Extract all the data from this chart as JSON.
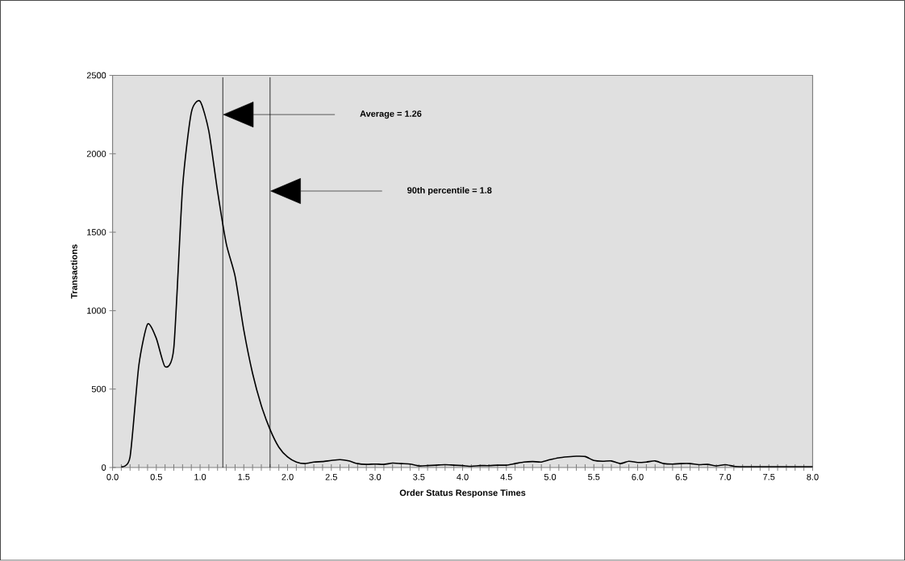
{
  "chart_data": {
    "type": "line",
    "xlabel": "Order Status Response Times",
    "ylabel": "Transactions",
    "x": [
      0.1,
      0.2,
      0.3,
      0.4,
      0.5,
      0.6,
      0.7,
      0.8,
      0.9,
      1.0,
      1.1,
      1.2,
      1.3,
      1.4,
      1.5,
      1.6,
      1.7,
      1.8,
      1.9,
      2.0,
      2.1,
      2.2,
      2.3,
      2.4,
      2.5,
      2.6,
      2.7,
      2.8,
      2.9,
      3.0,
      3.1,
      3.2,
      3.3,
      3.4,
      3.5,
      3.6,
      3.7,
      3.8,
      3.9,
      4.0,
      4.1,
      4.2,
      4.3,
      4.4,
      4.5,
      4.6,
      4.7,
      4.8,
      4.9,
      5.0,
      5.1,
      5.2,
      5.3,
      5.4,
      5.5,
      5.6,
      5.7,
      5.8,
      5.9,
      6.0,
      6.1,
      6.2,
      6.3,
      6.4,
      6.5,
      6.6,
      6.7,
      6.8,
      6.9,
      7.0,
      7.1,
      7.2,
      7.3,
      7.4,
      7.5,
      7.6,
      7.7,
      7.8,
      7.9,
      8.0
    ],
    "series": [
      {
        "color": "#000000",
        "values": [
          5,
          68,
          650,
          914,
          823,
          643,
          763,
          1785,
          2263,
          2335,
          2145,
          1760,
          1425,
          1220,
          875,
          600,
          395,
          242,
          130,
          67,
          35,
          25,
          35,
          38,
          45,
          50,
          42,
          25,
          20,
          22,
          20,
          28,
          25,
          22,
          10,
          12,
          15,
          18,
          15,
          12,
          8,
          12,
          12,
          15,
          15,
          25,
          35,
          38,
          35,
          50,
          62,
          68,
          72,
          70,
          45,
          40,
          42,
          25,
          40,
          32,
          35,
          42,
          25,
          22,
          25,
          25,
          18,
          20,
          10,
          18,
          8,
          5,
          5,
          5,
          5,
          5,
          5,
          5,
          5,
          5
        ]
      }
    ],
    "xlim": [
      0,
      8
    ],
    "ylim": [
      0,
      2500
    ],
    "xticks": [
      {
        "value": 0,
        "label": "0.0"
      },
      {
        "value": 0.5,
        "label": "0.5"
      },
      {
        "value": 1,
        "label": "1.0"
      },
      {
        "value": 1.5,
        "label": "1.5"
      },
      {
        "value": 2,
        "label": "2.0"
      },
      {
        "value": 2.5,
        "label": "2.5"
      },
      {
        "value": 3,
        "label": "3.0"
      },
      {
        "value": 3.5,
        "label": "3.5"
      },
      {
        "value": 4,
        "label": "4.0"
      },
      {
        "value": 4.5,
        "label": "4.5"
      },
      {
        "value": 5,
        "label": "5.0"
      },
      {
        "value": 5.5,
        "label": "5.5"
      },
      {
        "value": 6,
        "label": "6.0"
      },
      {
        "value": 6.5,
        "label": "6.5"
      },
      {
        "value": 7,
        "label": "7.0"
      },
      {
        "value": 7.5,
        "label": "7.5"
      },
      {
        "value": 8,
        "label": "8.0"
      }
    ],
    "yticks": [
      0,
      500,
      1000,
      1500,
      2000,
      2500
    ],
    "ref_lines": [
      {
        "axis": "x",
        "value": 1.26,
        "color": "#000000"
      },
      {
        "axis": "x",
        "value": 1.8,
        "color": "#000000"
      }
    ],
    "annotations": [
      "Average = 1.26",
      "90th percentile = 1.8"
    ],
    "grid": false
  }
}
